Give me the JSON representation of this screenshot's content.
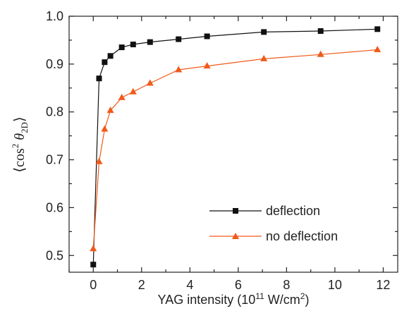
{
  "chart_data": {
    "type": "line",
    "xlabel_main": "YAG intensity (10",
    "xlabel_sup": "11",
    "xlabel_unit": " W/cm",
    "xlabel_sup2": "2",
    "xlabel_end": ")",
    "ylabel_open": "⟨",
    "ylabel_cos": "cos",
    "ylabel_pow": "2",
    "ylabel_theta": " θ",
    "ylabel_sub": "2D",
    "ylabel_close": "⟩",
    "xlim": [
      -1,
      12.6
    ],
    "ylim": [
      0.465,
      1.0
    ],
    "xticks": [
      0,
      2,
      4,
      6,
      8,
      10,
      12
    ],
    "xtick_labels": [
      "0",
      "2",
      "4",
      "6",
      "8",
      "10",
      "12"
    ],
    "yticks": [
      0.5,
      0.6,
      0.7,
      0.8,
      0.9,
      1.0
    ],
    "ytick_labels": [
      "0.5",
      "0.6",
      "0.7",
      "0.8",
      "0.9",
      "1.0"
    ],
    "legend_position": "lower-right",
    "series": [
      {
        "name": "deflection",
        "color": "#111111",
        "marker": "square",
        "x": [
          0,
          0.24,
          0.47,
          0.71,
          1.18,
          1.65,
          2.35,
          3.53,
          4.71,
          7.06,
          9.41,
          11.76
        ],
        "y": [
          0.481,
          0.87,
          0.904,
          0.917,
          0.935,
          0.941,
          0.946,
          0.952,
          0.958,
          0.967,
          0.969,
          0.973
        ]
      },
      {
        "name": "no deflection",
        "color": "#F05A1A",
        "marker": "triangle",
        "x": [
          0,
          0.24,
          0.47,
          0.71,
          1.18,
          1.65,
          2.35,
          3.53,
          4.71,
          7.06,
          9.41,
          11.76
        ],
        "y": [
          0.514,
          0.696,
          0.764,
          0.803,
          0.83,
          0.842,
          0.86,
          0.888,
          0.896,
          0.911,
          0.92,
          0.93
        ]
      }
    ]
  }
}
